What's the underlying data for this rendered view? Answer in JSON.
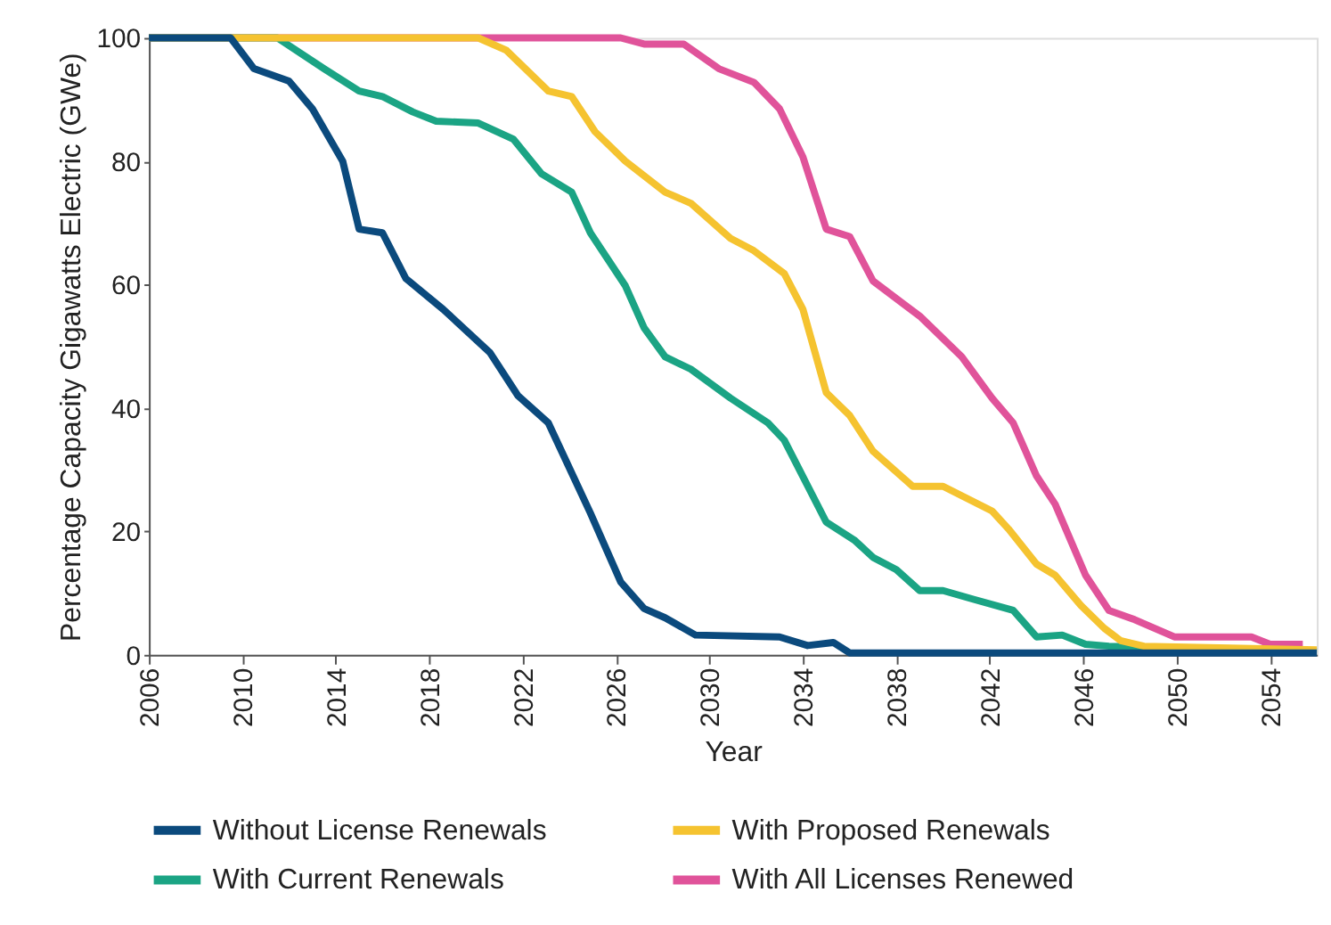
{
  "chart_data": {
    "type": "line",
    "xlabel": "Year",
    "ylabel": "Percentage Capacity Gigawatts Electric (GWe)",
    "xlim": [
      2006,
      2056
    ],
    "xticks": [
      2006,
      2010,
      2014,
      2018,
      2022,
      2026,
      2030,
      2034,
      2038,
      2042,
      2046,
      2050,
      2054
    ],
    "ylim": [
      0,
      100
    ],
    "yticks": [
      0,
      20,
      40,
      60,
      80,
      100
    ],
    "grid": false,
    "legend": "bottom",
    "line_style": "solid",
    "marker": "none",
    "series": [
      {
        "name": "Without License Renewals",
        "color": "#0b4a7d",
        "x": [
          2006,
          2009.5,
          2010.5,
          2012,
          2013,
          2014.3,
          2015,
          2016,
          2017,
          2018.6,
          2020.6,
          2021.8,
          2023.1,
          2024.9,
          2026.2,
          2027.2,
          2028.1,
          2029.4,
          2033,
          2034.2,
          2035.3,
          2036,
          2056
        ],
        "values": [
          100,
          100,
          95,
          93,
          88.5,
          80,
          69,
          68.4,
          61,
          56,
          49,
          42,
          37.6,
          23,
          11.8,
          7.5,
          6,
          3.2,
          2.9,
          1.5,
          2,
          0.3,
          0.3
        ]
      },
      {
        "name": "With Proposed Renewals",
        "color": "#f5c330",
        "x": [
          2006,
          2020.1,
          2021.3,
          2023.1,
          2024.1,
          2025.1,
          2026.4,
          2028.1,
          2029.2,
          2030.9,
          2031.9,
          2033.2,
          2034,
          2035,
          2036,
          2037,
          2038.7,
          2040,
          2042.1,
          2042.8,
          2044,
          2044.8,
          2045.9,
          2046.9,
          2047.6,
          2048.6,
          2056
        ],
        "values": [
          100,
          100,
          98,
          91.4,
          90.5,
          84.8,
          80,
          75,
          73.2,
          67.5,
          65.5,
          61.8,
          56,
          42.5,
          38.8,
          33,
          27.3,
          27.3,
          23.3,
          20.4,
          14.7,
          12.9,
          8,
          4.3,
          2.3,
          1.4,
          0.8
        ]
      },
      {
        "name": "With Current Renewals",
        "color": "#1ba484",
        "x": [
          2006,
          2011.5,
          2013.5,
          2015,
          2016,
          2017.3,
          2018.3,
          2020.1,
          2021.6,
          2022.8,
          2024.1,
          2024.9,
          2026.4,
          2027.2,
          2028.1,
          2029.2,
          2030.9,
          2032.5,
          2033.2,
          2035,
          2036.2,
          2037,
          2038,
          2039,
          2040,
          2041.3,
          2043,
          2044,
          2045.1,
          2046.1,
          2047.1,
          2056
        ],
        "values": [
          100,
          100,
          95,
          91.4,
          90.5,
          88,
          86.5,
          86.2,
          83.6,
          78,
          75,
          68.4,
          59.8,
          53,
          48.3,
          46.3,
          41.6,
          37.6,
          34.8,
          21.5,
          18.6,
          15.8,
          13.8,
          10.4,
          10.4,
          9,
          7.2,
          2.9,
          3.2,
          1.7,
          1.4,
          0.5
        ]
      },
      {
        "name": "With All Licenses Renewed",
        "color": "#e0539a",
        "x": [
          2006,
          2026.2,
          2027.2,
          2028.9,
          2030.4,
          2031.9,
          2033,
          2034,
          2035,
          2036,
          2037,
          2039,
          2040.8,
          2042.1,
          2043,
          2044,
          2044.8,
          2046.1,
          2047.1,
          2048.2,
          2049.9,
          2053.2,
          2054,
          2055.4
        ],
        "values": [
          100,
          100,
          99,
          99,
          95,
          92.8,
          88.5,
          80.7,
          69,
          67.8,
          60.6,
          54.9,
          48.3,
          41.6,
          37.6,
          29,
          24.4,
          12.9,
          7.2,
          5.7,
          2.9,
          2.9,
          1.7,
          1.7
        ]
      }
    ]
  }
}
